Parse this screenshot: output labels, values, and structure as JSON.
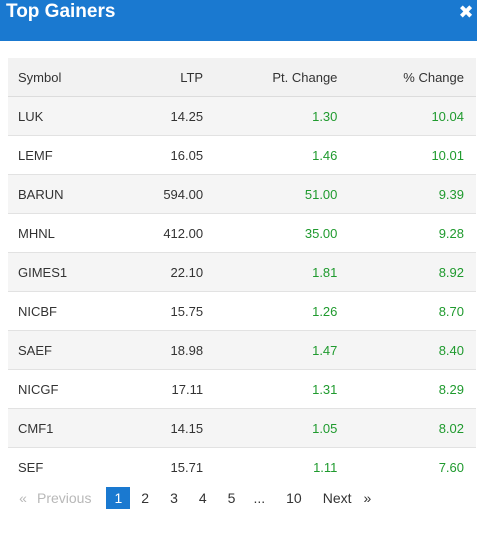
{
  "dialog": {
    "title": "Top Gainers",
    "close_glyph": "✖"
  },
  "table": {
    "headers": {
      "symbol": "Symbol",
      "ltp": "LTP",
      "pt_change": "Pt. Change",
      "pct_change": "% Change"
    },
    "rows": [
      {
        "symbol": "LUK",
        "ltp": "14.25",
        "pt_change": "1.30",
        "pct_change": "10.04"
      },
      {
        "symbol": "LEMF",
        "ltp": "16.05",
        "pt_change": "1.46",
        "pct_change": "10.01"
      },
      {
        "symbol": "BARUN",
        "ltp": "594.00",
        "pt_change": "51.00",
        "pct_change": "9.39"
      },
      {
        "symbol": "MHNL",
        "ltp": "412.00",
        "pt_change": "35.00",
        "pct_change": "9.28"
      },
      {
        "symbol": "GIMES1",
        "ltp": "22.10",
        "pt_change": "1.81",
        "pct_change": "8.92"
      },
      {
        "symbol": "NICBF",
        "ltp": "15.75",
        "pt_change": "1.26",
        "pct_change": "8.70"
      },
      {
        "symbol": "SAEF",
        "ltp": "18.98",
        "pt_change": "1.47",
        "pct_change": "8.40"
      },
      {
        "symbol": "NICGF",
        "ltp": "17.11",
        "pt_change": "1.31",
        "pct_change": "8.29"
      },
      {
        "symbol": "CMF1",
        "ltp": "14.15",
        "pt_change": "1.05",
        "pct_change": "8.02"
      },
      {
        "symbol": "SEF",
        "ltp": "15.71",
        "pt_change": "1.11",
        "pct_change": "7.60"
      }
    ]
  },
  "pagination": {
    "first": "«",
    "previous": "Previous",
    "pages": [
      "1",
      "2",
      "3",
      "4",
      "5"
    ],
    "ellipsis": "...",
    "last_page": "10",
    "next": "Next",
    "last": "»",
    "current": "1"
  },
  "colors": {
    "header_bg": "#1a79d0",
    "positive": "#1f9a2e"
  },
  "icons": {
    "close": "close-icon"
  }
}
